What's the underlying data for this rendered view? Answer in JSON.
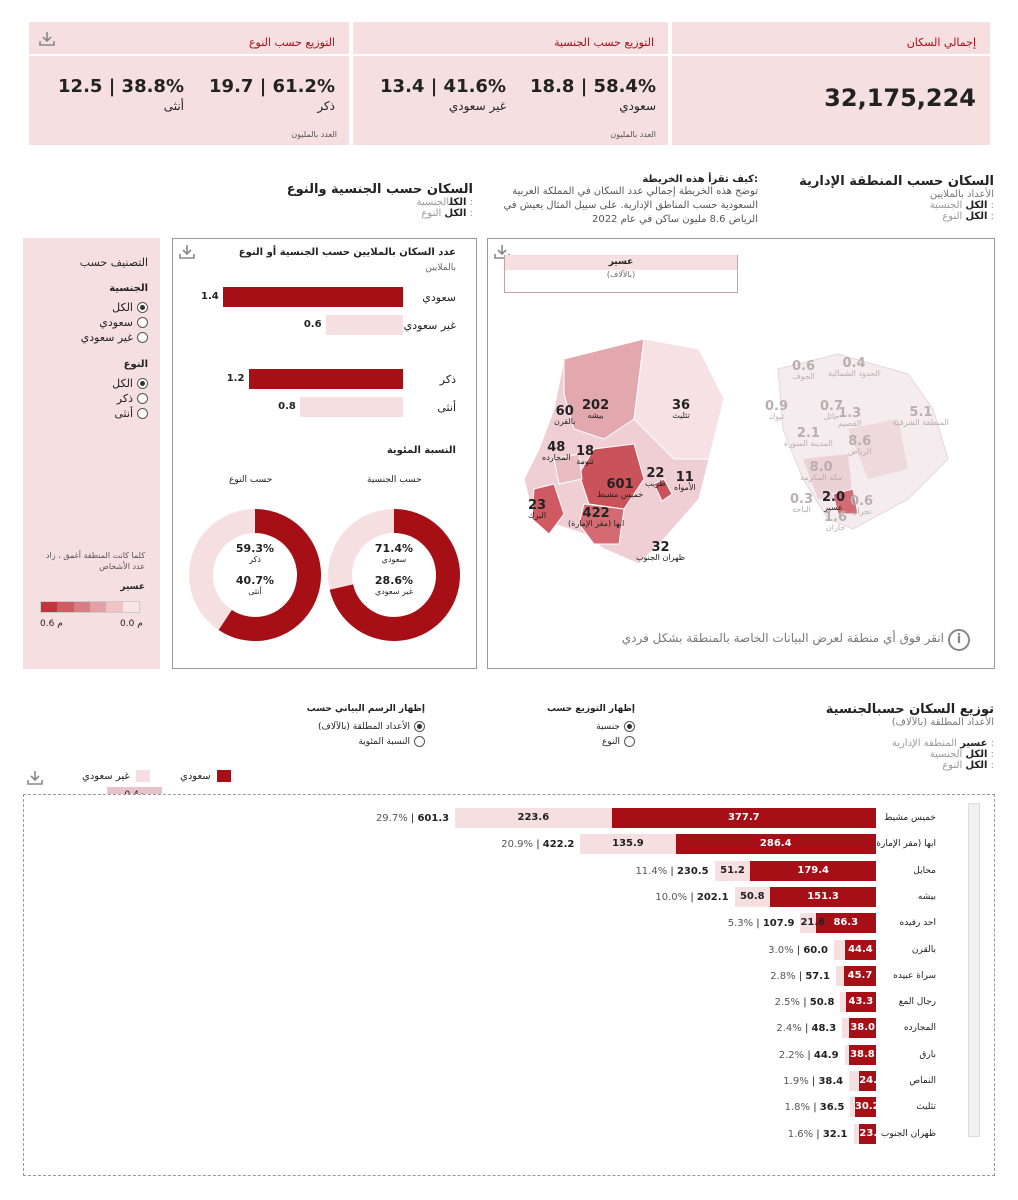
{
  "kpi": {
    "total": {
      "title": "إجمالي السكان",
      "value": "32,175,224"
    },
    "nationality": {
      "title": "التوزيع حسب الجنسية",
      "a_value": "18.8 | 58.4%",
      "a_label": "سعودي",
      "b_value": "13.4 | 41.6%",
      "b_label": "غير سعودي",
      "note": "العدد بالمليون"
    },
    "gender": {
      "title": "التوزيع حسب النوع",
      "a_value": "19.7 | 61.2%",
      "a_label": "ذكر",
      "b_value": "12.5 | 38.8%",
      "b_label": "أنثى",
      "note": "العدد بالمليون"
    }
  },
  "region_section": {
    "title": "السكان حسب المنطقة الإدارية",
    "subtitle": "الأعداد بالملايين",
    "filter_nat_value": "الكل",
    "filter_nat_label": "الجنسية :",
    "filter_gender_value": "الكل",
    "filter_gender_label": "النوع :",
    "how_title": "كيف تقرأ هذه الخريطة:",
    "how_text": "توضح هذه الخريطة إجمالي عدد السكان في المملكة العربية السعودية حسب المناطق الإدارية. على سبيل المثال يعيش في الرياض 8.6 مليون ساكن في عام 2022"
  },
  "map": {
    "tooltip_title": "عسير",
    "tooltip_unit": "(بالآلاف)",
    "hint": "انقر فوق أي منطقة لعرض البيانات الخاصة بالمنطقة بشكل فردي",
    "asir_regions": [
      {
        "name": "بيشه",
        "value": "202"
      },
      {
        "name": "تثليث",
        "value": "36"
      },
      {
        "name": "بالقرن",
        "value": "60"
      },
      {
        "name": "المجارده",
        "value": "48"
      },
      {
        "name": "تنومة",
        "value": "18"
      },
      {
        "name": "خميس مشيط",
        "value": "601"
      },
      {
        "name": "طريب",
        "value": "22"
      },
      {
        "name": "الأمواه",
        "value": "11"
      },
      {
        "name": "البرك",
        "value": "23"
      },
      {
        "name": "ابها (مقر الإمارة)",
        "value": "422"
      },
      {
        "name": "ظهران الجنوب",
        "value": "32"
      }
    ],
    "ksa_regions": [
      {
        "name": "الجوف",
        "value": "0.6"
      },
      {
        "name": "الحدود الشمالية",
        "value": "0.4"
      },
      {
        "name": "تبوك",
        "value": "0.9"
      },
      {
        "name": "حائل",
        "value": "0.7"
      },
      {
        "name": "القصيم",
        "value": "1.3"
      },
      {
        "name": "المنطقة الشرقية",
        "value": "5.1"
      },
      {
        "name": "المدينة المنورة",
        "value": "2.1"
      },
      {
        "name": "الرياض",
        "value": "8.6"
      },
      {
        "name": "مكة المكرمة",
        "value": "8.0"
      },
      {
        "name": "الباحة",
        "value": "0.3"
      },
      {
        "name": "عسير",
        "value": "2.0"
      },
      {
        "name": "نجران",
        "value": "0.6"
      },
      {
        "name": "جازان",
        "value": "1.6"
      }
    ]
  },
  "classify": {
    "title": "التصنيف حسب",
    "nat_title": "الجنسية",
    "nat_options": [
      "الكل",
      "سعودي",
      "غير سعودي"
    ],
    "gender_title": "النوع",
    "gender_options": [
      "الكل",
      "ذكر",
      "أنثى"
    ],
    "legend_note": "كلما كانت المنطقة أغمق ، زاد عدد الأشخاص",
    "legend_region": "عسير",
    "legend_min": "0.0 م",
    "legend_max": "0.6 م",
    "legend_colors": [
      "#c4323c",
      "#cf5a62",
      "#d97d84",
      "#e3a0a5",
      "#edc3c6",
      "#f8e6e7"
    ]
  },
  "natgender_section": {
    "title": "السكان حسب الجنسية والنوع",
    "filter_nat_value": "الكل",
    "filter_nat_label": "الجنسية :",
    "filter_gender_value": "الكل",
    "filter_gender_label": "النوع :",
    "panel_title": "عدد السكان بالملايين حسب الجنسية أو النوع",
    "panel_sub": "بالملايين",
    "pct_title": "النسبة المئوية",
    "by_nat": "حسب الجنسية",
    "by_gender": "حسب النوع"
  },
  "chart_data": [
    {
      "type": "bar",
      "title": "عدد السكان بالملايين حسب الجنسية أو النوع",
      "categories": [
        "سعودي",
        "غير سعودي",
        "ذكر",
        "أنثى"
      ],
      "values": [
        1.4,
        0.6,
        1.2,
        0.8
      ],
      "value_labels": [
        "1.4",
        "0.6",
        "1.2",
        "0.8"
      ],
      "colors": [
        "#a50f15",
        "#f6dfe1",
        "#a50f15",
        "#f6dfe1"
      ],
      "xlim": [
        0,
        1.4
      ]
    },
    {
      "type": "pie",
      "title": "حسب الجنسية",
      "labels": [
        "سعودي",
        "غير سعودي"
      ],
      "values": [
        71.4,
        28.6
      ],
      "value_labels": [
        "71.4%",
        "28.6%"
      ]
    },
    {
      "type": "pie",
      "title": "حسب النوع",
      "labels": [
        "ذكر",
        "أنثى"
      ],
      "values": [
        59.3,
        40.7
      ],
      "value_labels": [
        "59.3%",
        "40.7%"
      ]
    },
    {
      "type": "bar",
      "title": "توزيع السكان حسب الجنسية",
      "subtitle": "(الأعداد المطلقة (بالآلاف",
      "series_names": [
        "سعودي",
        "غير سعودي"
      ],
      "categories": [
        "خميس مشيط",
        "ابها (مقر الإمارة)",
        "محايل",
        "بيشه",
        "احد رفيده",
        "بالقرن",
        "سراة عبيده",
        "رجال المع",
        "المجارده",
        "بارق",
        "النماص",
        "تثليث",
        "ظهران الجنوب"
      ],
      "saudi": [
        377.7,
        286.4,
        179.4,
        151.3,
        86.3,
        44.4,
        45.7,
        43.3,
        38.0,
        38.8,
        24.0,
        30.2,
        23.7
      ],
      "non_saudi": [
        223.6,
        135.9,
        51.2,
        50.8,
        21.6,
        15.6,
        11.4,
        7.5,
        10.3,
        6.1,
        14.4,
        6.3,
        8.4
      ],
      "saudi_labels": [
        "377.7",
        "286.4",
        "179.4",
        "151.3",
        "86.3",
        "44.4",
        "45.7",
        "43.3",
        "38.0",
        "38.8",
        "24.0",
        "30.2",
        "23.7"
      ],
      "non_saudi_labels": [
        "223.6",
        "135.9",
        "51.2",
        "50.8",
        "21.6",
        "",
        "",
        "",
        "",
        "",
        "",
        "",
        ""
      ],
      "totals": [
        "601.3",
        "422.2",
        "230.5",
        "202.1",
        "107.9",
        "60.0",
        "57.1",
        "50.8",
        "48.3",
        "44.9",
        "38.4",
        "36.5",
        "32.1"
      ],
      "shares": [
        "29.7%",
        "20.9%",
        "11.4%",
        "10.0%",
        "5.3%",
        "3.0%",
        "2.8%",
        "2.5%",
        "2.4%",
        "2.2%",
        "1.9%",
        "1.8%",
        "1.6%"
      ],
      "axis_max_label": "0.4م"
    }
  ],
  "dist_section": {
    "title_a": "توزيع السكان حسب",
    "title_b": "الجنسية",
    "subtitle": "(الأعداد المطلقة (بالآلاف",
    "filter_region_value": "عسير",
    "filter_region_label": "المنطقة الإدارية :",
    "filter_nat_value": "الكل",
    "filter_nat_label": "الجنسية :",
    "filter_gender_value": "الكل",
    "filter_gender_label": "النوع :",
    "show_dist_title": "إظهار التوزيع حسب",
    "show_dist_options": [
      "جنسية",
      "النوع"
    ],
    "show_chart_title": "إظهار الرسم البياني حسب",
    "show_chart_options": [
      "(الأعداد المطلقة (بالآلاف",
      "النسبة المئوية"
    ],
    "legend_saudi": "سعودي",
    "legend_non_saudi": "غير سعودي"
  },
  "colors": {
    "accent": "#a50f15",
    "light": "#f6dfe1"
  }
}
